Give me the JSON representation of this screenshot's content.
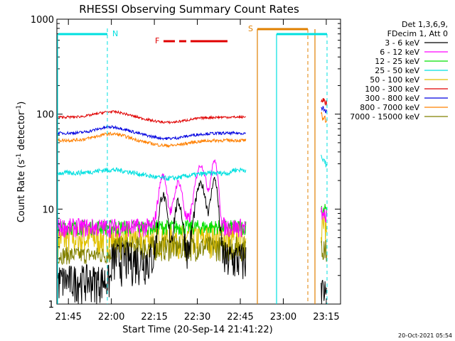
{
  "chart_data": {
    "type": "line",
    "title": "RHESSI Observing Summary Count Rates",
    "xlabel": "Start Time (20-Sep-14 21:41:22)",
    "ylabel": "Count Rate (s",
    "ylabel_sup": "-1",
    "ylabel_mid": " detector",
    "ylabel_end": ")",
    "y_scale": "log",
    "ylim": [
      1,
      1000
    ],
    "xlim_minutes": [
      21.683,
      23.333
    ],
    "x_ticks": [
      {
        "label": "21:45",
        "t": 21.75
      },
      {
        "label": "22:00",
        "t": 22.0
      },
      {
        "label": "22:15",
        "t": 22.25
      },
      {
        "label": "22:30",
        "t": 22.5
      },
      {
        "label": "22:45",
        "t": 22.75
      },
      {
        "label": "23:00",
        "t": 23.0
      },
      {
        "label": "23:15",
        "t": 23.25
      }
    ],
    "y_ticks": [
      "1",
      "10",
      "100",
      "1000"
    ],
    "legend_header": [
      "Det 1,3,6,9,",
      "FDecim 1, Att 0"
    ],
    "series": [
      {
        "name": "3 - 6 keV",
        "color": "#000000"
      },
      {
        "name": "6 - 12 keV",
        "color": "#ff00ff"
      },
      {
        "name": "12 - 25 keV",
        "color": "#00e000"
      },
      {
        "name": "25 - 50 keV",
        "color": "#00e0e0"
      },
      {
        "name": "50 - 100 keV",
        "color": "#e0c000"
      },
      {
        "name": "100 - 300 keV",
        "color": "#e00000"
      },
      {
        "name": "300 - 800 keV",
        "color": "#0000e0"
      },
      {
        "name": "800 - 7000 keV",
        "color": "#ff8000"
      },
      {
        "name": "7000 - 15000 keV",
        "color": "#808000"
      }
    ],
    "annotations": [
      {
        "label": "N",
        "color": "#00e0e0"
      },
      {
        "label": "F",
        "color": "#e00000"
      },
      {
        "label": "S",
        "color": "#e08000"
      }
    ],
    "timestamp": "20-Oct-2021 05:54"
  }
}
